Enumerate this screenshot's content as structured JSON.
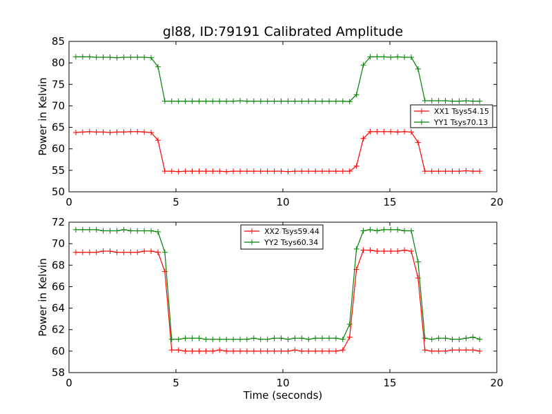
{
  "figure": {
    "title": "gl88, ID:79191 Calibrated Amplitude",
    "xlabel": "Time (seconds)"
  },
  "chart_data": [
    {
      "type": "line",
      "title": "gl88, ID:79191 Calibrated Amplitude",
      "xlabel": "",
      "ylabel": "Power in Kelvin",
      "xlim": [
        0,
        20
      ],
      "ylim": [
        50,
        85
      ],
      "xticks": [
        0,
        5,
        10,
        15,
        20
      ],
      "yticks": [
        50,
        55,
        60,
        65,
        70,
        75,
        80,
        85
      ],
      "grid": false,
      "legend_position": "center-right",
      "x": [
        0.32,
        0.64,
        0.96,
        1.28,
        1.6,
        1.92,
        2.24,
        2.56,
        2.88,
        3.2,
        3.52,
        3.84,
        4.16,
        4.48,
        4.8,
        5.12,
        5.44,
        5.76,
        6.08,
        6.4,
        6.72,
        7.04,
        7.36,
        7.68,
        8.0,
        8.32,
        8.64,
        8.96,
        9.28,
        9.6,
        9.92,
        10.24,
        10.56,
        10.88,
        11.2,
        11.52,
        11.84,
        12.16,
        12.48,
        12.8,
        13.12,
        13.44,
        13.76,
        14.08,
        14.4,
        14.72,
        15.04,
        15.36,
        15.68,
        16.0,
        16.32,
        16.64,
        16.96,
        17.28,
        17.6,
        17.92,
        18.24,
        18.56,
        18.88,
        19.2
      ],
      "series": [
        {
          "name": "XX1 Tsys54.15",
          "color": "#ff0000",
          "values": [
            63.8,
            63.9,
            64.0,
            63.9,
            63.9,
            63.8,
            63.9,
            63.9,
            64.0,
            64.0,
            63.9,
            63.8,
            62.0,
            54.8,
            54.8,
            54.7,
            54.8,
            54.8,
            54.8,
            54.8,
            54.8,
            54.8,
            54.7,
            54.8,
            54.8,
            54.8,
            54.8,
            54.8,
            54.8,
            54.8,
            54.8,
            54.7,
            54.8,
            54.8,
            54.8,
            54.8,
            54.8,
            54.8,
            54.8,
            54.8,
            54.8,
            56.0,
            62.4,
            64.0,
            64.0,
            64.0,
            64.0,
            63.9,
            64.0,
            63.9,
            61.5,
            54.8,
            54.8,
            54.8,
            54.8,
            54.8,
            54.8,
            54.9,
            54.8,
            54.8
          ]
        },
        {
          "name": "YY1 Tsys70.13",
          "color": "#008000",
          "values": [
            81.4,
            81.4,
            81.4,
            81.3,
            81.3,
            81.3,
            81.2,
            81.3,
            81.3,
            81.3,
            81.3,
            81.2,
            79.1,
            71.1,
            71.1,
            71.1,
            71.1,
            71.1,
            71.1,
            71.1,
            71.1,
            71.1,
            71.1,
            71.1,
            71.2,
            71.1,
            71.1,
            71.1,
            71.1,
            71.1,
            71.1,
            71.1,
            71.1,
            71.1,
            71.1,
            71.1,
            71.1,
            71.1,
            71.1,
            71.1,
            71.0,
            72.6,
            79.5,
            81.4,
            81.4,
            81.4,
            81.3,
            81.4,
            81.3,
            81.3,
            78.6,
            71.2,
            71.2,
            71.2,
            71.2,
            71.1,
            71.1,
            71.2,
            71.1,
            71.1
          ]
        }
      ]
    },
    {
      "type": "line",
      "title": "",
      "xlabel": "Time (seconds)",
      "ylabel": "Power in Kelvin",
      "xlim": [
        0,
        20
      ],
      "ylim": [
        58,
        72
      ],
      "xticks": [
        0,
        5,
        10,
        15,
        20
      ],
      "yticks": [
        58,
        60,
        62,
        64,
        66,
        68,
        70,
        72
      ],
      "grid": false,
      "legend_position": "top-center",
      "x": [
        0.32,
        0.64,
        0.96,
        1.28,
        1.6,
        1.92,
        2.24,
        2.56,
        2.88,
        3.2,
        3.52,
        3.84,
        4.16,
        4.48,
        4.8,
        5.12,
        5.44,
        5.76,
        6.08,
        6.4,
        6.72,
        7.04,
        7.36,
        7.68,
        8.0,
        8.32,
        8.64,
        8.96,
        9.28,
        9.6,
        9.92,
        10.24,
        10.56,
        10.88,
        11.2,
        11.52,
        11.84,
        12.16,
        12.48,
        12.8,
        13.12,
        13.44,
        13.76,
        14.08,
        14.4,
        14.72,
        15.04,
        15.36,
        15.68,
        16.0,
        16.32,
        16.64,
        16.96,
        17.28,
        17.6,
        17.92,
        18.24,
        18.56,
        18.88,
        19.2
      ],
      "series": [
        {
          "name": "XX2 Tsys59.44",
          "color": "#ff0000",
          "values": [
            69.2,
            69.2,
            69.2,
            69.2,
            69.3,
            69.3,
            69.2,
            69.2,
            69.2,
            69.2,
            69.3,
            69.3,
            69.2,
            67.4,
            60.1,
            60.1,
            60.0,
            60.0,
            60.0,
            60.0,
            60.0,
            60.1,
            60.0,
            60.0,
            60.0,
            60.0,
            60.0,
            60.0,
            60.0,
            60.0,
            60.0,
            60.0,
            60.1,
            60.0,
            60.0,
            60.0,
            60.0,
            60.0,
            60.0,
            60.1,
            61.3,
            67.6,
            69.4,
            69.4,
            69.3,
            69.3,
            69.3,
            69.3,
            69.4,
            69.3,
            66.8,
            60.1,
            60.0,
            60.0,
            60.0,
            60.1,
            60.1,
            60.1,
            60.1,
            60.0
          ]
        },
        {
          "name": "YY2 Tsys60.34",
          "color": "#008000",
          "values": [
            71.3,
            71.3,
            71.3,
            71.3,
            71.2,
            71.2,
            71.2,
            71.3,
            71.2,
            71.2,
            71.2,
            71.2,
            71.1,
            69.2,
            61.1,
            61.1,
            61.2,
            61.2,
            61.2,
            61.1,
            61.1,
            61.1,
            61.1,
            61.1,
            61.1,
            61.1,
            61.2,
            61.1,
            61.1,
            61.2,
            61.2,
            61.1,
            61.2,
            61.2,
            61.1,
            61.2,
            61.2,
            61.2,
            61.2,
            61.1,
            62.5,
            69.5,
            71.2,
            71.3,
            71.2,
            71.3,
            71.3,
            71.3,
            71.2,
            71.2,
            68.3,
            61.2,
            61.1,
            61.2,
            61.2,
            61.1,
            61.1,
            61.2,
            61.3,
            61.1
          ]
        }
      ]
    }
  ]
}
